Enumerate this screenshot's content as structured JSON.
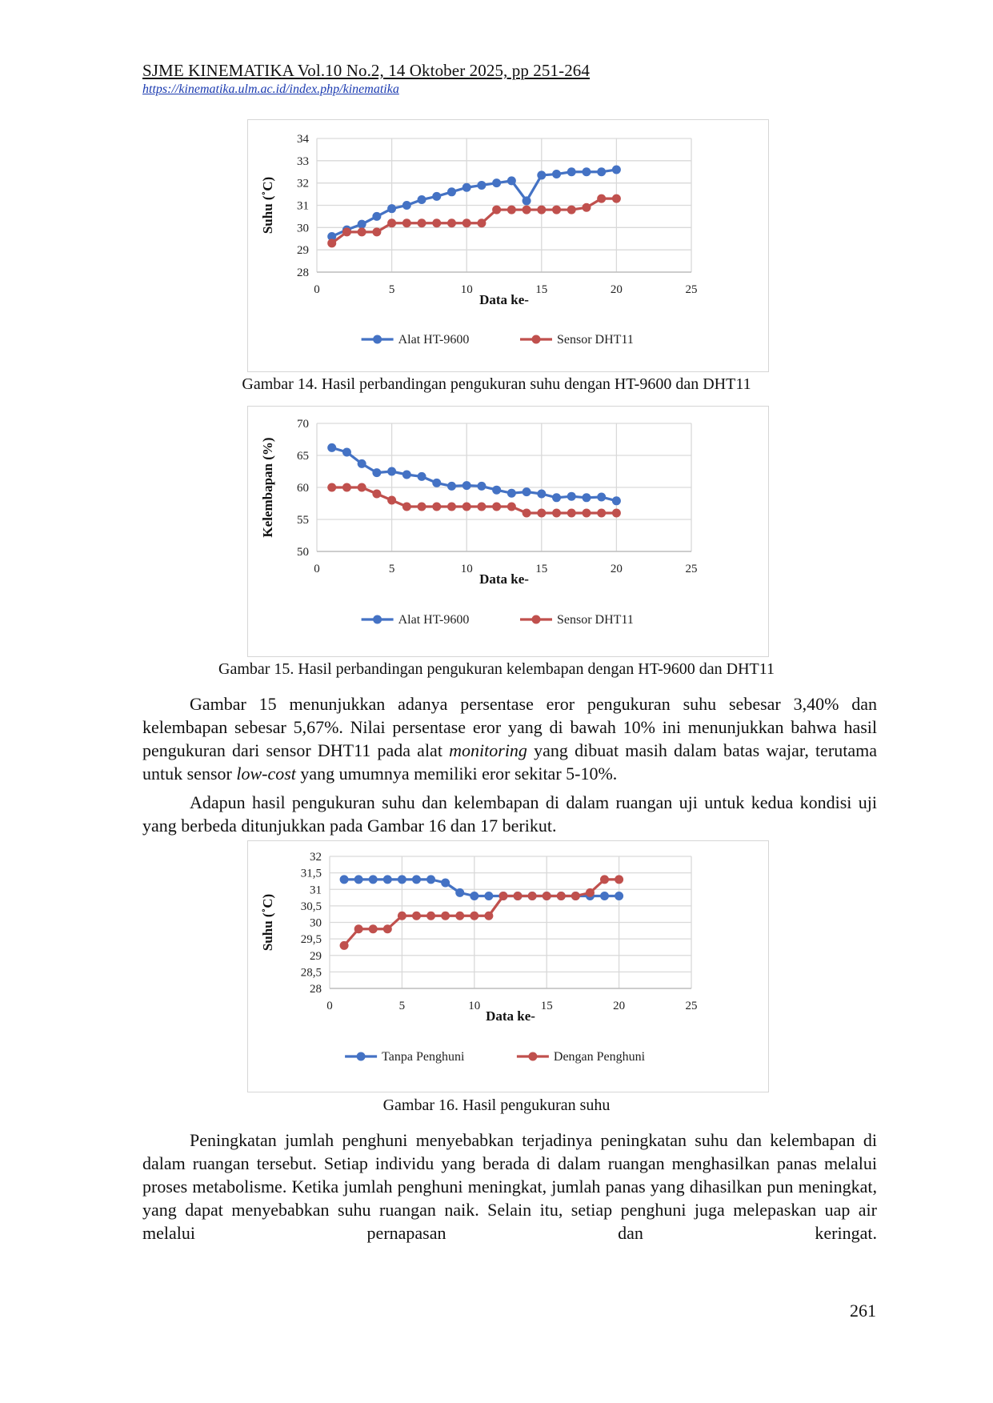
{
  "header": {
    "journal": "SJME KINEMATIKA Vol.10 No.2, 14 Oktober 2025, pp 251-264",
    "url": "https://kinematika.ulm.ac.id/index.php/kinematika"
  },
  "captions": {
    "fig14": "Gambar 14. Hasil perbandingan pengukuran suhu dengan HT-9600 dan DHT11",
    "fig15": "Gambar 15. Hasil perbandingan pengukuran kelembapan dengan HT-9600 dan DHT11",
    "fig16": "Gambar 16. Hasil pengukuran suhu"
  },
  "body": {
    "p1_a": "Gambar 15 menunjukkan adanya persentase eror pengukuran suhu sebesar 3,40% dan kelembapan sebesar 5,67%. Nilai persentase eror yang di bawah 10% ini menunjukkan bahwa hasil pengukuran dari sensor DHT11 pada alat ",
    "p1_em1": "monitoring",
    "p1_b": " yang dibuat masih dalam batas wajar, terutama untuk sensor ",
    "p1_em2": "low-cost",
    "p1_c": " yang umumnya memiliki eror sekitar 5-10%.",
    "p2": "Adapun hasil pengukuran suhu dan kelembapan di dalam ruangan uji untuk kedua kondisi uji yang berbeda ditunjukkan pada Gambar 16 dan 17 berikut.",
    "p3": "Peningkatan jumlah penghuni menyebabkan terjadinya peningkatan suhu dan kelembapan di dalam ruangan tersebut. Setiap individu yang berada di dalam ruangan menghasilkan panas melalui proses metabolisme. Ketika jumlah penghuni meningkat, jumlah panas yang dihasilkan pun meningkat, yang dapat menyebabkan suhu ruangan naik. Selain itu, setiap penghuni juga melepaskan uap air melalui pernapasan dan keringat."
  },
  "page_number": "261",
  "colors": {
    "blue": "#4472c4",
    "red": "#c0504d",
    "grid": "#d9d9d9",
    "axis": "#bfbfbf"
  },
  "chart_data": [
    {
      "id": "fig14",
      "type": "line",
      "xlabel": "Data ke-",
      "ylabel": "Suhu (˚C)",
      "xlim": [
        0,
        25
      ],
      "ylim": [
        28,
        34
      ],
      "xticks": [
        0,
        5,
        10,
        15,
        20,
        25
      ],
      "yticks": [
        28,
        29,
        30,
        31,
        32,
        33,
        34
      ],
      "ytick_labels": [
        "28",
        "29",
        "30",
        "31",
        "32",
        "33",
        "34"
      ],
      "x": [
        1,
        2,
        3,
        4,
        5,
        6,
        7,
        8,
        9,
        10,
        11,
        12,
        13,
        14,
        15,
        16,
        17,
        18,
        19,
        20
      ],
      "series": [
        {
          "name": "Alat HT-9600",
          "color": "#4472c4",
          "values": [
            29.6,
            29.9,
            30.15,
            30.5,
            30.85,
            31.0,
            31.25,
            31.4,
            31.6,
            31.8,
            31.9,
            32.0,
            32.1,
            31.2,
            32.35,
            32.4,
            32.5,
            32.5,
            32.5,
            32.6
          ]
        },
        {
          "name": "Sensor DHT11",
          "color": "#c0504d",
          "values": [
            29.3,
            29.8,
            29.8,
            29.8,
            30.2,
            30.2,
            30.2,
            30.2,
            30.2,
            30.2,
            30.2,
            30.8,
            30.8,
            30.8,
            30.8,
            30.8,
            30.8,
            30.9,
            31.3,
            31.3
          ]
        }
      ]
    },
    {
      "id": "fig15",
      "type": "line",
      "xlabel": "Data ke-",
      "ylabel": "Kelembapan (%)",
      "xlim": [
        0,
        25
      ],
      "ylim": [
        50,
        70
      ],
      "xticks": [
        0,
        5,
        10,
        15,
        20,
        25
      ],
      "yticks": [
        50,
        55,
        60,
        65,
        70
      ],
      "ytick_labels": [
        "50",
        "55",
        "60",
        "65",
        "70"
      ],
      "x": [
        1,
        2,
        3,
        4,
        5,
        6,
        7,
        8,
        9,
        10,
        11,
        12,
        13,
        14,
        15,
        16,
        17,
        18,
        19,
        20
      ],
      "series": [
        {
          "name": "Alat HT-9600",
          "color": "#4472c4",
          "values": [
            66.2,
            65.5,
            63.7,
            62.3,
            62.5,
            62.0,
            61.7,
            60.7,
            60.2,
            60.3,
            60.2,
            59.6,
            59.1,
            59.3,
            59.0,
            58.4,
            58.6,
            58.4,
            58.5,
            57.9
          ]
        },
        {
          "name": "Sensor DHT11",
          "color": "#c0504d",
          "values": [
            60,
            60,
            60,
            59,
            58,
            57,
            57,
            57,
            57,
            57,
            57,
            57,
            57,
            56,
            56,
            56,
            56,
            56,
            56,
            56
          ]
        }
      ]
    },
    {
      "id": "fig16",
      "type": "line",
      "xlabel": "Data ke-",
      "ylabel": "Suhu (˚C)",
      "xlim": [
        0,
        25
      ],
      "ylim": [
        28,
        32
      ],
      "xticks": [
        0,
        5,
        10,
        15,
        20,
        25
      ],
      "yticks": [
        28,
        28.5,
        29,
        29.5,
        30,
        30.5,
        31,
        31.5,
        32
      ],
      "ytick_labels": [
        "28",
        "28,5",
        "29",
        "29,5",
        "30",
        "30,5",
        "31",
        "31,5",
        "32"
      ],
      "x": [
        1,
        2,
        3,
        4,
        5,
        6,
        7,
        8,
        9,
        10,
        11,
        12,
        13,
        14,
        15,
        16,
        17,
        18,
        19,
        20
      ],
      "series": [
        {
          "name": "Tanpa Penghuni",
          "color": "#4472c4",
          "values": [
            31.3,
            31.3,
            31.3,
            31.3,
            31.3,
            31.3,
            31.3,
            31.2,
            30.9,
            30.8,
            30.8,
            30.8,
            30.8,
            30.8,
            30.8,
            30.8,
            30.8,
            30.8,
            30.8,
            30.8
          ]
        },
        {
          "name": "Dengan Penghuni",
          "color": "#c0504d",
          "values": [
            29.3,
            29.8,
            29.8,
            29.8,
            30.2,
            30.2,
            30.2,
            30.2,
            30.2,
            30.2,
            30.2,
            30.8,
            30.8,
            30.8,
            30.8,
            30.8,
            30.8,
            30.9,
            31.3,
            31.3
          ]
        }
      ]
    }
  ]
}
